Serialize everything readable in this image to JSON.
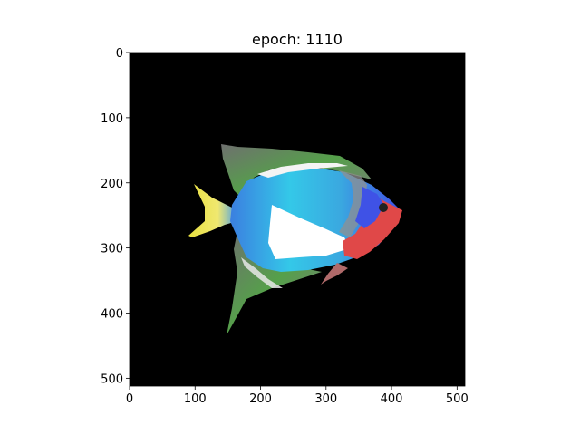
{
  "chart_data": {
    "type": "image",
    "title": "epoch: 1110",
    "image_size": [
      512,
      512
    ],
    "xlim": [
      0,
      512
    ],
    "ylim": [
      512,
      0
    ],
    "xticks": [
      0,
      100,
      200,
      300,
      400,
      500
    ],
    "yticks": [
      0,
      100,
      200,
      300,
      400,
      500
    ],
    "background_color": "#000000",
    "content": "fish"
  }
}
